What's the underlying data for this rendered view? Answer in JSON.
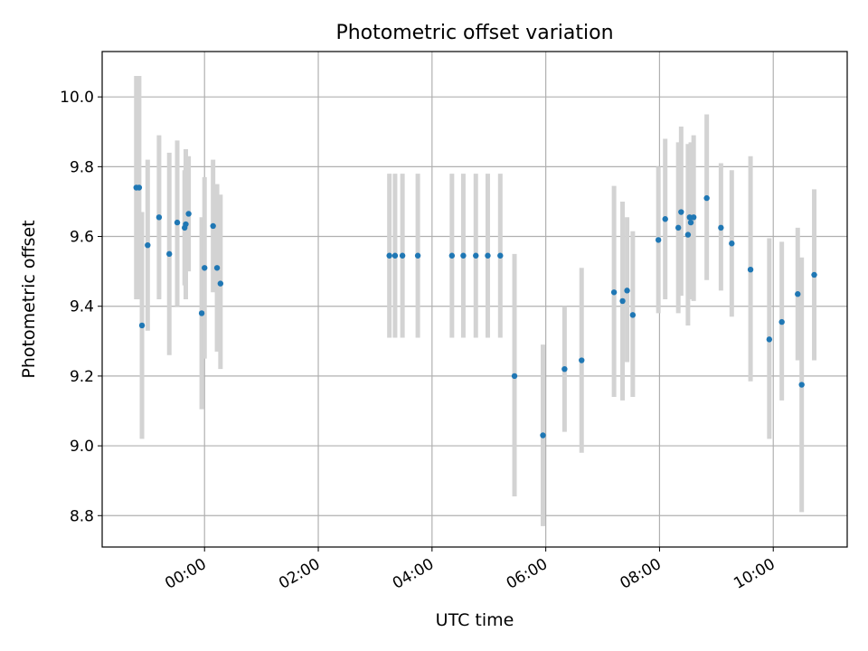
{
  "chart_data": {
    "type": "scatter",
    "title": "Photometric offset variation",
    "xlabel": "UTC time",
    "ylabel": "Photometric offset",
    "x_unit": "hours (UTC, relative to 00:00)",
    "xlim": [
      -1.8,
      11.3
    ],
    "ylim": [
      8.71,
      10.13
    ],
    "x_ticks": [
      {
        "value": 0,
        "label": "00:00"
      },
      {
        "value": 2,
        "label": "02:00"
      },
      {
        "value": 4,
        "label": "04:00"
      },
      {
        "value": 6,
        "label": "06:00"
      },
      {
        "value": 8,
        "label": "08:00"
      },
      {
        "value": 10,
        "label": "10:00"
      }
    ],
    "y_ticks": [
      {
        "value": 8.8,
        "label": "8.8"
      },
      {
        "value": 9.0,
        "label": "9.0"
      },
      {
        "value": 9.2,
        "label": "9.2"
      },
      {
        "value": 9.4,
        "label": "9.4"
      },
      {
        "value": 9.6,
        "label": "9.6"
      },
      {
        "value": 9.8,
        "label": "9.8"
      },
      {
        "value": 10.0,
        "label": "10.0"
      }
    ],
    "grid": true,
    "colors": {
      "point": "#1f77b4",
      "errorbar": "#d3d3d3",
      "grid": "#b0b0b0"
    },
    "series": [
      {
        "points": [
          {
            "x": -1.2,
            "y": 9.74,
            "lo": 9.42,
            "hi": 10.06
          },
          {
            "x": -1.15,
            "y": 9.74,
            "lo": 9.42,
            "hi": 10.06
          },
          {
            "x": -1.1,
            "y": 9.345,
            "lo": 9.02,
            "hi": 9.67
          },
          {
            "x": -1.0,
            "y": 9.575,
            "lo": 9.33,
            "hi": 9.82
          },
          {
            "x": -0.8,
            "y": 9.655,
            "lo": 9.42,
            "hi": 9.89
          },
          {
            "x": -0.62,
            "y": 9.55,
            "lo": 9.26,
            "hi": 9.84
          },
          {
            "x": -0.48,
            "y": 9.64,
            "lo": 9.4,
            "hi": 9.875
          },
          {
            "x": -0.35,
            "y": 9.625,
            "lo": 9.46,
            "hi": 9.79
          },
          {
            "x": -0.33,
            "y": 9.635,
            "lo": 9.42,
            "hi": 9.85
          },
          {
            "x": -0.28,
            "y": 9.665,
            "lo": 9.5,
            "hi": 9.83
          },
          {
            "x": -0.05,
            "y": 9.38,
            "lo": 9.105,
            "hi": 9.655
          },
          {
            "x": 0.0,
            "y": 9.51,
            "lo": 9.25,
            "hi": 9.77
          },
          {
            "x": 0.15,
            "y": 9.63,
            "lo": 9.44,
            "hi": 9.82
          },
          {
            "x": 0.22,
            "y": 9.51,
            "lo": 9.27,
            "hi": 9.75
          },
          {
            "x": 0.28,
            "y": 9.465,
            "lo": 9.22,
            "hi": 9.72
          },
          {
            "x": 3.25,
            "y": 9.545,
            "lo": 9.31,
            "hi": 9.78
          },
          {
            "x": 3.35,
            "y": 9.545,
            "lo": 9.31,
            "hi": 9.78
          },
          {
            "x": 3.48,
            "y": 9.545,
            "lo": 9.31,
            "hi": 9.78
          },
          {
            "x": 3.75,
            "y": 9.545,
            "lo": 9.31,
            "hi": 9.78
          },
          {
            "x": 4.35,
            "y": 9.545,
            "lo": 9.31,
            "hi": 9.78
          },
          {
            "x": 4.55,
            "y": 9.545,
            "lo": 9.31,
            "hi": 9.78
          },
          {
            "x": 4.77,
            "y": 9.545,
            "lo": 9.31,
            "hi": 9.78
          },
          {
            "x": 4.98,
            "y": 9.545,
            "lo": 9.31,
            "hi": 9.78
          },
          {
            "x": 5.2,
            "y": 9.545,
            "lo": 9.31,
            "hi": 9.78
          },
          {
            "x": 5.45,
            "y": 9.2,
            "lo": 8.855,
            "hi": 9.55
          },
          {
            "x": 5.95,
            "y": 9.03,
            "lo": 8.77,
            "hi": 9.29
          },
          {
            "x": 6.33,
            "y": 9.22,
            "lo": 9.04,
            "hi": 9.4
          },
          {
            "x": 6.63,
            "y": 9.245,
            "lo": 8.98,
            "hi": 9.51
          },
          {
            "x": 7.2,
            "y": 9.44,
            "lo": 9.14,
            "hi": 9.745
          },
          {
            "x": 7.35,
            "y": 9.415,
            "lo": 9.13,
            "hi": 9.7
          },
          {
            "x": 7.43,
            "y": 9.445,
            "lo": 9.24,
            "hi": 9.655
          },
          {
            "x": 7.53,
            "y": 9.375,
            "lo": 9.14,
            "hi": 9.615
          },
          {
            "x": 7.98,
            "y": 9.59,
            "lo": 9.38,
            "hi": 9.8
          },
          {
            "x": 8.1,
            "y": 9.65,
            "lo": 9.42,
            "hi": 9.88
          },
          {
            "x": 8.33,
            "y": 9.625,
            "lo": 9.38,
            "hi": 9.87
          },
          {
            "x": 8.38,
            "y": 9.67,
            "lo": 9.43,
            "hi": 9.915
          },
          {
            "x": 8.5,
            "y": 9.605,
            "lo": 9.345,
            "hi": 9.865
          },
          {
            "x": 8.53,
            "y": 9.655,
            "lo": 9.45,
            "hi": 9.86
          },
          {
            "x": 8.55,
            "y": 9.64,
            "lo": 9.42,
            "hi": 9.87
          },
          {
            "x": 8.6,
            "y": 9.655,
            "lo": 9.415,
            "hi": 9.89
          },
          {
            "x": 8.83,
            "y": 9.71,
            "lo": 9.475,
            "hi": 9.95
          },
          {
            "x": 9.08,
            "y": 9.625,
            "lo": 9.445,
            "hi": 9.81
          },
          {
            "x": 9.27,
            "y": 9.58,
            "lo": 9.37,
            "hi": 9.79
          },
          {
            "x": 9.6,
            "y": 9.505,
            "lo": 9.185,
            "hi": 9.83
          },
          {
            "x": 9.93,
            "y": 9.305,
            "lo": 9.02,
            "hi": 9.595
          },
          {
            "x": 10.15,
            "y": 9.355,
            "lo": 9.13,
            "hi": 9.585
          },
          {
            "x": 10.43,
            "y": 9.435,
            "lo": 9.245,
            "hi": 9.625
          },
          {
            "x": 10.5,
            "y": 9.175,
            "lo": 8.81,
            "hi": 9.54
          },
          {
            "x": 10.72,
            "y": 9.49,
            "lo": 9.245,
            "hi": 9.735
          }
        ]
      }
    ]
  }
}
